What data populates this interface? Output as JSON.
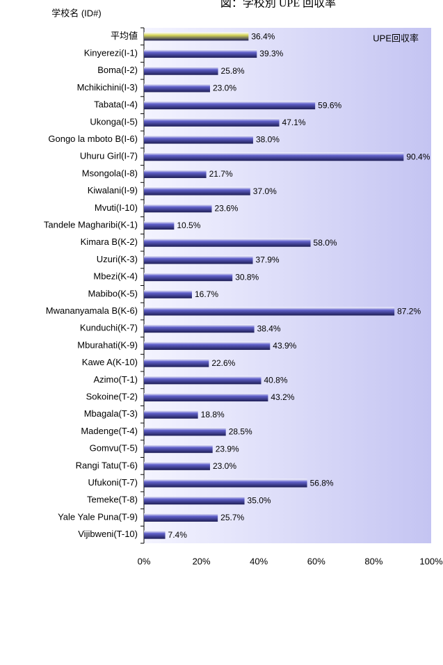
{
  "chart_data": {
    "type": "barh",
    "title": "図：学校別 UPE 回収率",
    "y_axis_label": "学校名 (ID#)",
    "legend_text": "UPE回収率",
    "categories": [
      "平均値",
      "Kinyerezi(I-1)",
      "Boma(I-2)",
      "Mchikichini(I-3)",
      "Tabata(I-4)",
      "Ukonga(I-5)",
      "Gongo la mboto B(I-6)",
      "Uhuru Girl(I-7)",
      "Msongola(I-8)",
      "Kiwalani(I-9)",
      "Mvuti(I-10)",
      "Tandele Magharibi(K-1)",
      "Kimara B(K-2)",
      "Uzuri(K-3)",
      "Mbezi(K-4)",
      "Mabibo(K-5)",
      "Mwananyamala B(K-6)",
      "Kunduchi(K-7)",
      "Mburahati(K-9)",
      "Kawe A(K-10)",
      "Azimo(T-1)",
      "Sokoine(T-2)",
      "Mbagala(T-3)",
      "Madenge(T-4)",
      "Gomvu(T-5)",
      "Rangi Tatu(T-6)",
      "Ufukoni(T-7)",
      "Temeke(T-8)",
      "Yale Yale Puna(T-9)",
      "Vijibweni(T-10)"
    ],
    "values": [
      36.4,
      39.3,
      25.8,
      23.0,
      59.6,
      47.1,
      38.0,
      90.4,
      21.7,
      37.0,
      23.6,
      10.5,
      58.0,
      37.9,
      30.8,
      16.7,
      87.2,
      38.4,
      43.9,
      22.6,
      40.8,
      43.2,
      18.8,
      28.5,
      23.9,
      23.0,
      56.8,
      35.0,
      25.7,
      7.4
    ],
    "value_labels": [
      "36.4%",
      "39.3%",
      "25.8%",
      "23.0%",
      "59.6%",
      "47.1%",
      "38.0%",
      "90.4%",
      "21.7%",
      "37.0%",
      "23.6%",
      "10.5%",
      "58.0%",
      "37.9%",
      "30.8%",
      "16.7%",
      "87.2%",
      "38.4%",
      "43.9%",
      "22.6%",
      "40.8%",
      "43.2%",
      "18.8%",
      "28.5%",
      "23.9%",
      "23.0%",
      "56.8%",
      "35.0%",
      "25.7%",
      "7.4%"
    ],
    "colors": [
      "#d6d65a",
      "#6262cc",
      "#6262cc",
      "#6262cc",
      "#6262cc",
      "#6262cc",
      "#6262cc",
      "#6262cc",
      "#6262cc",
      "#6262cc",
      "#6262cc",
      "#6262cc",
      "#6262cc",
      "#6262cc",
      "#6262cc",
      "#6262cc",
      "#6262cc",
      "#6262cc",
      "#6262cc",
      "#6262cc",
      "#6262cc",
      "#6262cc",
      "#6262cc",
      "#6262cc",
      "#6262cc",
      "#6262cc",
      "#6262cc",
      "#6262cc",
      "#6262cc",
      "#6262cc"
    ],
    "xlim": [
      0,
      100
    ],
    "xticks": [
      {
        "value": 0,
        "label": "0%"
      },
      {
        "value": 20,
        "label": "20%"
      },
      {
        "value": 40,
        "label": "40%"
      },
      {
        "value": 60,
        "label": "60%"
      },
      {
        "value": 80,
        "label": "80%"
      },
      {
        "value": 100,
        "label": "100%"
      }
    ],
    "grid": false
  }
}
